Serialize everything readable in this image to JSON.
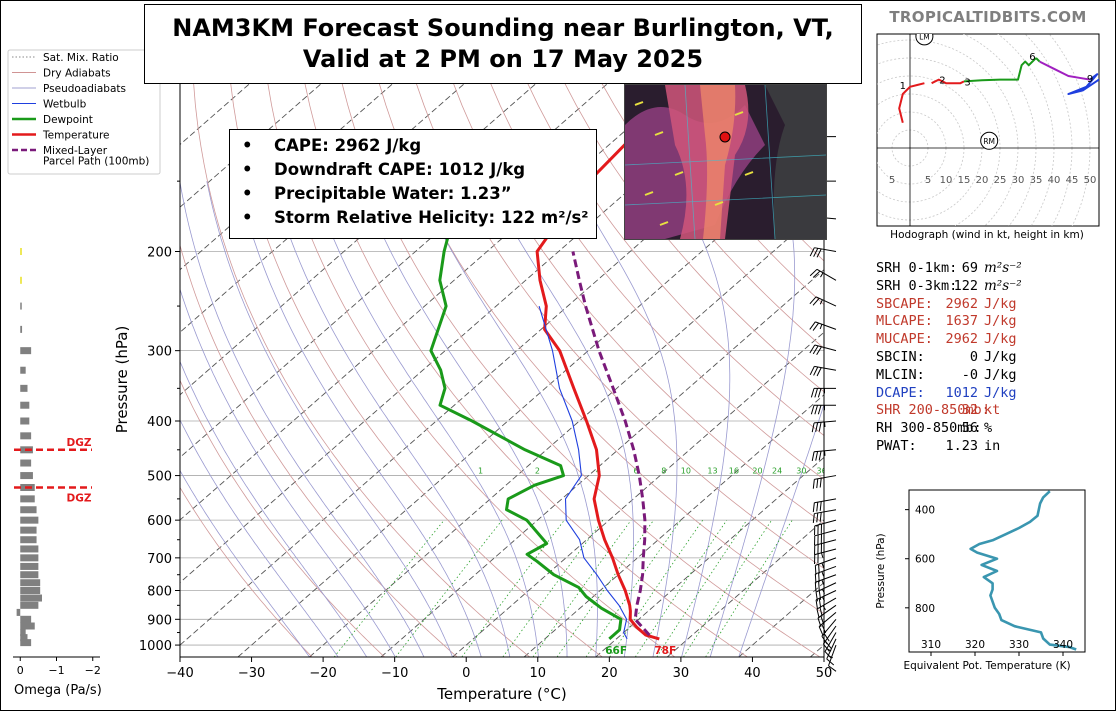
{
  "title": {
    "line1": "NAM3KM Forecast Sounding near Burlington, VT,",
    "line2": "Valid at 2 PM on 17 May 2025"
  },
  "brand": "TROPICALTIDBITS.COM",
  "legend": [
    {
      "label": "Sat. Mix. Ratio",
      "color": "#2ca02c",
      "style": "dotted"
    },
    {
      "label": "Dry Adiabats",
      "color": "#c07070",
      "style": "solid-thin"
    },
    {
      "label": "Pseudoadiabats",
      "color": "#8080c0",
      "style": "solid-thin"
    },
    {
      "label": "Wetbulb",
      "color": "#1f3fdf",
      "style": "solid"
    },
    {
      "label": "Dewpoint",
      "color": "#1a9a1a",
      "style": "solid-thick"
    },
    {
      "label": "Temperature",
      "color": "#e31a1c",
      "style": "solid-thick"
    },
    {
      "label": "Mixed-Layer",
      "color": "#7a1a7a",
      "style": "dashed"
    },
    {
      "label": "Parcel Path (100mb)",
      "color": "#7a1a7a",
      "style": "none"
    }
  ],
  "info_box": [
    {
      "bullet": "•",
      "text": "CAPE: 2962 J/kg"
    },
    {
      "bullet": "•",
      "text": "Downdraft CAPE: 1012 J/kg"
    },
    {
      "bullet": "•",
      "text": "Precipitable Water: 1.23”"
    },
    {
      "bullet": "•",
      "text": "Storm Relative Helicity: 122 m²/s²"
    }
  ],
  "stats": [
    {
      "label": "SRH 0-1km:",
      "value": "69",
      "unit": "m²s⁻²",
      "color": "#000000"
    },
    {
      "label": "SRH 0-3km:",
      "value": "122",
      "unit": "m²s⁻²",
      "color": "#000000"
    },
    {
      "label": "SBCAPE:",
      "value": "2962",
      "unit": "J/kg",
      "color": "#c0392b"
    },
    {
      "label": "MLCAPE:",
      "value": "1637",
      "unit": "J/kg",
      "color": "#c0392b"
    },
    {
      "label": "MUCAPE:",
      "value": "2962",
      "unit": "J/kg",
      "color": "#c0392b"
    },
    {
      "label": "SBCIN:",
      "value": "0",
      "unit": "J/kg",
      "color": "#000000"
    },
    {
      "label": "MLCIN:",
      "value": "-0",
      "unit": "J/kg",
      "color": "#000000"
    },
    {
      "label": "DCAPE:",
      "value": "1012",
      "unit": "J/kg",
      "color": "#2040c0"
    },
    {
      "label": "SHR 200-850mb:",
      "value": "32",
      "unit": "kt",
      "color": "#c0392b"
    },
    {
      "label": "RH 300-850mb:",
      "value": "56",
      "unit": "%",
      "color": "#000000"
    },
    {
      "label": "PWAT:",
      "value": "1.23",
      "unit": "in",
      "color": "#000000"
    }
  ],
  "colors": {
    "temperature": "#e31a1c",
    "dewpoint": "#1a9a1a",
    "wetbulb": "#1f3fdf",
    "parcel": "#7a1a7a",
    "dry_adiabat": "#d09a9a",
    "pseudoadiabat": "#9a9ad0",
    "mix_ratio": "#2ca02c",
    "isotherm": "#444444",
    "theta_e": "#3a96b0",
    "dgz": "#e31a1c",
    "omega": "#808080"
  },
  "chart_data": [
    {
      "type": "line",
      "name": "skew-t",
      "xlabel": "Temperature (°C)",
      "ylabel": "Pressure (hPa)",
      "xlim": [
        -40,
        50
      ],
      "ylim": [
        1050,
        100
      ],
      "log_y": true,
      "skew_deg_per_log_decade": 90,
      "x_ticks": [
        -40,
        -30,
        -20,
        -10,
        0,
        10,
        20,
        30,
        40,
        50
      ],
      "y_ticks": [
        1000,
        900,
        800,
        700,
        600,
        500,
        400,
        300,
        200
      ],
      "mix_ratio_labels": [
        "1",
        "2",
        "4",
        "6",
        "8",
        "10",
        "13",
        "16",
        "20",
        "24",
        "30",
        "36"
      ],
      "surface_labels": {
        "temperature": "78F",
        "dewpoint": "66F"
      },
      "series": [
        {
          "name": "Temperature",
          "key": "temperature",
          "p": [
            975,
            960,
            930,
            900,
            870,
            850,
            800,
            750,
            700,
            650,
            600,
            550,
            500,
            450,
            400,
            350,
            300,
            275,
            250,
            225,
            200,
            175,
            150,
            125
          ],
          "t": [
            26,
            23.5,
            21,
            18.8,
            17.5,
            16.5,
            13.5,
            10,
            6.5,
            2.5,
            -1.5,
            -5.5,
            -8.5,
            -13,
            -19,
            -26,
            -34,
            -39.5,
            -43,
            -48,
            -53,
            -55,
            -57,
            -58
          ]
        },
        {
          "name": "Dewpoint",
          "key": "dewpoint",
          "p": [
            975,
            960,
            940,
            900,
            860,
            820,
            790,
            750,
            710,
            690,
            660,
            600,
            575,
            550,
            520,
            500,
            480,
            450,
            400,
            375,
            350,
            325,
            300,
            250,
            225,
            200,
            175,
            150,
            125
          ],
          "t": [
            19,
            19,
            19,
            17.5,
            13,
            9,
            6.5,
            1,
            -3.5,
            -6,
            -5,
            -11.5,
            -16,
            -17.5,
            -16,
            -13.5,
            -15.5,
            -23,
            -35,
            -42,
            -44,
            -47.5,
            -52,
            -57,
            -62,
            -66,
            -70,
            -70,
            -72
          ]
        },
        {
          "name": "Wetbulb",
          "key": "wetbulb",
          "p": [
            975,
            950,
            900,
            850,
            800,
            750,
            700,
            650,
            600,
            550,
            500,
            450,
            400,
            350,
            300,
            250
          ],
          "t": [
            21.5,
            20,
            18.3,
            15,
            11,
            7,
            2.5,
            -1,
            -6,
            -9.5,
            -11,
            -15.5,
            -21,
            -28,
            -35,
            -44
          ]
        },
        {
          "name": "Mixed-Layer Parcel Path (100mb)",
          "key": "parcel",
          "p": [
            960,
            900,
            850,
            800,
            750,
            700,
            650,
            600,
            550,
            500,
            450,
            400,
            350,
            300,
            250,
            225,
            200
          ],
          "t": [
            24,
            19.5,
            17.5,
            15.6,
            13.4,
            10.8,
            8.1,
            5,
            1.3,
            -2.9,
            -7.8,
            -13.6,
            -20.5,
            -28.5,
            -37.5,
            -42.5,
            -48
          ]
        }
      ],
      "dgz": [
        {
          "label": "DGZ",
          "p": 450
        },
        {
          "label": "DGZ",
          "p": 525
        }
      ],
      "wind_barbs": [
        {
          "p": 1000,
          "dir": 200,
          "kt": 10
        },
        {
          "p": 975,
          "dir": 205,
          "kt": 15
        },
        {
          "p": 950,
          "dir": 210,
          "kt": 15
        },
        {
          "p": 925,
          "dir": 215,
          "kt": 20
        },
        {
          "p": 900,
          "dir": 220,
          "kt": 20
        },
        {
          "p": 875,
          "dir": 230,
          "kt": 20
        },
        {
          "p": 850,
          "dir": 235,
          "kt": 20
        },
        {
          "p": 825,
          "dir": 240,
          "kt": 25
        },
        {
          "p": 800,
          "dir": 245,
          "kt": 25
        },
        {
          "p": 775,
          "dir": 245,
          "kt": 25
        },
        {
          "p": 750,
          "dir": 250,
          "kt": 25
        },
        {
          "p": 725,
          "dir": 250,
          "kt": 25
        },
        {
          "p": 700,
          "dir": 250,
          "kt": 25
        },
        {
          "p": 675,
          "dir": 255,
          "kt": 25
        },
        {
          "p": 650,
          "dir": 255,
          "kt": 30
        },
        {
          "p": 625,
          "dir": 255,
          "kt": 30
        },
        {
          "p": 600,
          "dir": 255,
          "kt": 30
        },
        {
          "p": 575,
          "dir": 260,
          "kt": 30
        },
        {
          "p": 550,
          "dir": 260,
          "kt": 30
        },
        {
          "p": 500,
          "dir": 260,
          "kt": 30
        },
        {
          "p": 450,
          "dir": 265,
          "kt": 35
        },
        {
          "p": 400,
          "dir": 265,
          "kt": 35
        },
        {
          "p": 375,
          "dir": 270,
          "kt": 35
        },
        {
          "p": 350,
          "dir": 270,
          "kt": 35
        },
        {
          "p": 325,
          "dir": 280,
          "kt": 30
        },
        {
          "p": 300,
          "dir": 285,
          "kt": 30
        },
        {
          "p": 275,
          "dir": 290,
          "kt": 25
        },
        {
          "p": 250,
          "dir": 295,
          "kt": 25
        },
        {
          "p": 225,
          "dir": 300,
          "kt": 25
        },
        {
          "p": 200,
          "dir": 280,
          "kt": 30
        },
        {
          "p": 175,
          "dir": 275,
          "kt": 30
        },
        {
          "p": 150,
          "dir": 270,
          "kt": 25
        },
        {
          "p": 125,
          "dir": 270,
          "kt": 25
        }
      ]
    },
    {
      "type": "bar",
      "name": "omega",
      "xlabel": "Omega (Pa/s)",
      "x_ticks": [
        "0",
        "−1",
        "−2"
      ],
      "xlim": [
        0.2,
        -2.2
      ],
      "p": [
        990,
        970,
        950,
        925,
        900,
        875,
        850,
        825,
        800,
        775,
        750,
        725,
        700,
        675,
        650,
        625,
        600,
        575,
        550,
        525,
        500,
        475,
        450,
        425,
        400,
        375,
        350,
        325,
        300,
        275,
        250,
        225,
        200
      ],
      "values": [
        -0.3,
        -0.2,
        -0.15,
        -0.4,
        -0.3,
        0.1,
        -0.5,
        -0.6,
        -0.55,
        -0.55,
        -0.5,
        -0.5,
        -0.5,
        -0.5,
        -0.45,
        -0.45,
        -0.5,
        -0.45,
        -0.4,
        -0.4,
        -0.35,
        -0.3,
        -0.35,
        -0.3,
        -0.25,
        -0.25,
        -0.2,
        -0.15,
        -0.3,
        -0.05,
        -0.02,
        -0.01,
        -0.02
      ]
    },
    {
      "type": "line",
      "name": "hodograph",
      "caption": "Hodograph (wind in kt, height in km)",
      "rings": [
        5,
        10,
        15,
        20,
        25,
        30,
        35,
        40,
        45,
        50
      ],
      "x_tick_labels": [
        "5",
        "5",
        "10",
        "15",
        "20",
        "25",
        "30",
        "35",
        "40",
        "45",
        "50"
      ],
      "markers": [
        "LM",
        "RM"
      ],
      "height_labels": [
        "1",
        "2",
        "3",
        "6",
        "9"
      ],
      "segments": [
        {
          "color": "#e31a1c",
          "u": [
            -2,
            -3,
            -2,
            0,
            2,
            4
          ],
          "v": [
            7,
            11,
            15,
            17,
            17.5,
            18
          ]
        },
        {
          "color": "#e31a1c",
          "u": [
            6,
            8,
            10,
            12,
            14,
            15
          ],
          "v": [
            18,
            19,
            18,
            18,
            18,
            18.5
          ]
        },
        {
          "color": "#1a9a1a",
          "u": [
            15,
            20,
            25,
            30,
            31,
            32,
            33,
            35
          ],
          "v": [
            18.5,
            18.8,
            19,
            19,
            23,
            24,
            23,
            25
          ]
        },
        {
          "color": "#1a9a1a",
          "u": [
            35,
            36
          ],
          "v": [
            25,
            24
          ]
        },
        {
          "color": "#a020c0",
          "u": [
            36,
            40,
            44,
            47,
            50
          ],
          "v": [
            24,
            22,
            20,
            19.5,
            19
          ]
        },
        {
          "color": "#1f3fdf",
          "u": [
            50,
            52,
            49,
            44,
            48,
            54
          ],
          "v": [
            19,
            20.5,
            17,
            15,
            16,
            20
          ]
        }
      ],
      "height_points": [
        {
          "label": "1",
          "u": -2,
          "v": 17.5
        },
        {
          "label": "2",
          "u": 9,
          "v": 19
        },
        {
          "label": "3",
          "u": 16,
          "v": 18.5
        },
        {
          "label": "6",
          "u": 34,
          "v": 25.5
        },
        {
          "label": "9",
          "u": 50,
          "v": 19.5
        }
      ],
      "storm_motion": [
        {
          "label": "LM",
          "u": 4,
          "v": 31
        },
        {
          "label": "RM",
          "u": 22,
          "v": 2
        }
      ]
    },
    {
      "type": "line",
      "name": "theta-e",
      "xlabel": "Equivalent Pot. Temperature (K)",
      "ylabel": "Pressure (hPa)",
      "xlim": [
        305,
        345
      ],
      "ylim": [
        980,
        320
      ],
      "x_ticks": [
        310,
        320,
        330,
        340
      ],
      "y_ticks": [
        400,
        600,
        800
      ],
      "p": [
        970,
        960,
        950,
        925,
        900,
        875,
        850,
        825,
        800,
        775,
        750,
        725,
        700,
        675,
        650,
        625,
        600,
        575,
        560,
        540,
        525,
        500,
        475,
        450,
        425,
        400,
        375,
        350,
        325
      ],
      "values": [
        343,
        341.5,
        337,
        335.5,
        335,
        329,
        326,
        325.5,
        324.5,
        324,
        323.5,
        324,
        324,
        322,
        325,
        321.5,
        325,
        320.5,
        319,
        321,
        324,
        327,
        330,
        332.5,
        334.2,
        334.5,
        334.8,
        335.5,
        337
      ]
    }
  ]
}
